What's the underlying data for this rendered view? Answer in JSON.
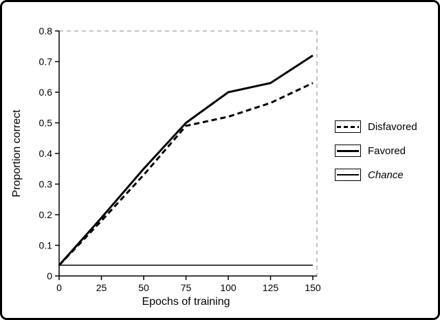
{
  "colors": {
    "line": "#000000",
    "frame_dashed": "#b0b0b0",
    "background": "#ffffff",
    "border": "#000000"
  },
  "chart_data": {
    "type": "line",
    "title": "",
    "xlabel": "Epochs of training",
    "ylabel": "Proportion correct",
    "xlim": [
      0,
      150
    ],
    "ylim": [
      0,
      0.8
    ],
    "xticks": [
      0,
      25,
      50,
      75,
      100,
      125,
      150
    ],
    "yticks": [
      0,
      0.1,
      0.2,
      0.3,
      0.4,
      0.5,
      0.6,
      0.7,
      0.8
    ],
    "grid": false,
    "legend_position": "right-center",
    "series": [
      {
        "name": "Disfavored",
        "style": "dashed-thick",
        "x": [
          0,
          25,
          50,
          75,
          100,
          125,
          150
        ],
        "y": [
          0.035,
          0.18,
          0.33,
          0.49,
          0.52,
          0.565,
          0.63
        ]
      },
      {
        "name": "Favored",
        "style": "solid-thick",
        "x": [
          0,
          25,
          50,
          75,
          100,
          125,
          150
        ],
        "y": [
          0.035,
          0.19,
          0.35,
          0.5,
          0.6,
          0.63,
          0.72
        ]
      },
      {
        "name": "Chance",
        "style": "solid-thin",
        "italic": true,
        "x": [
          0,
          150
        ],
        "y": [
          0.035,
          0.035
        ]
      }
    ]
  }
}
